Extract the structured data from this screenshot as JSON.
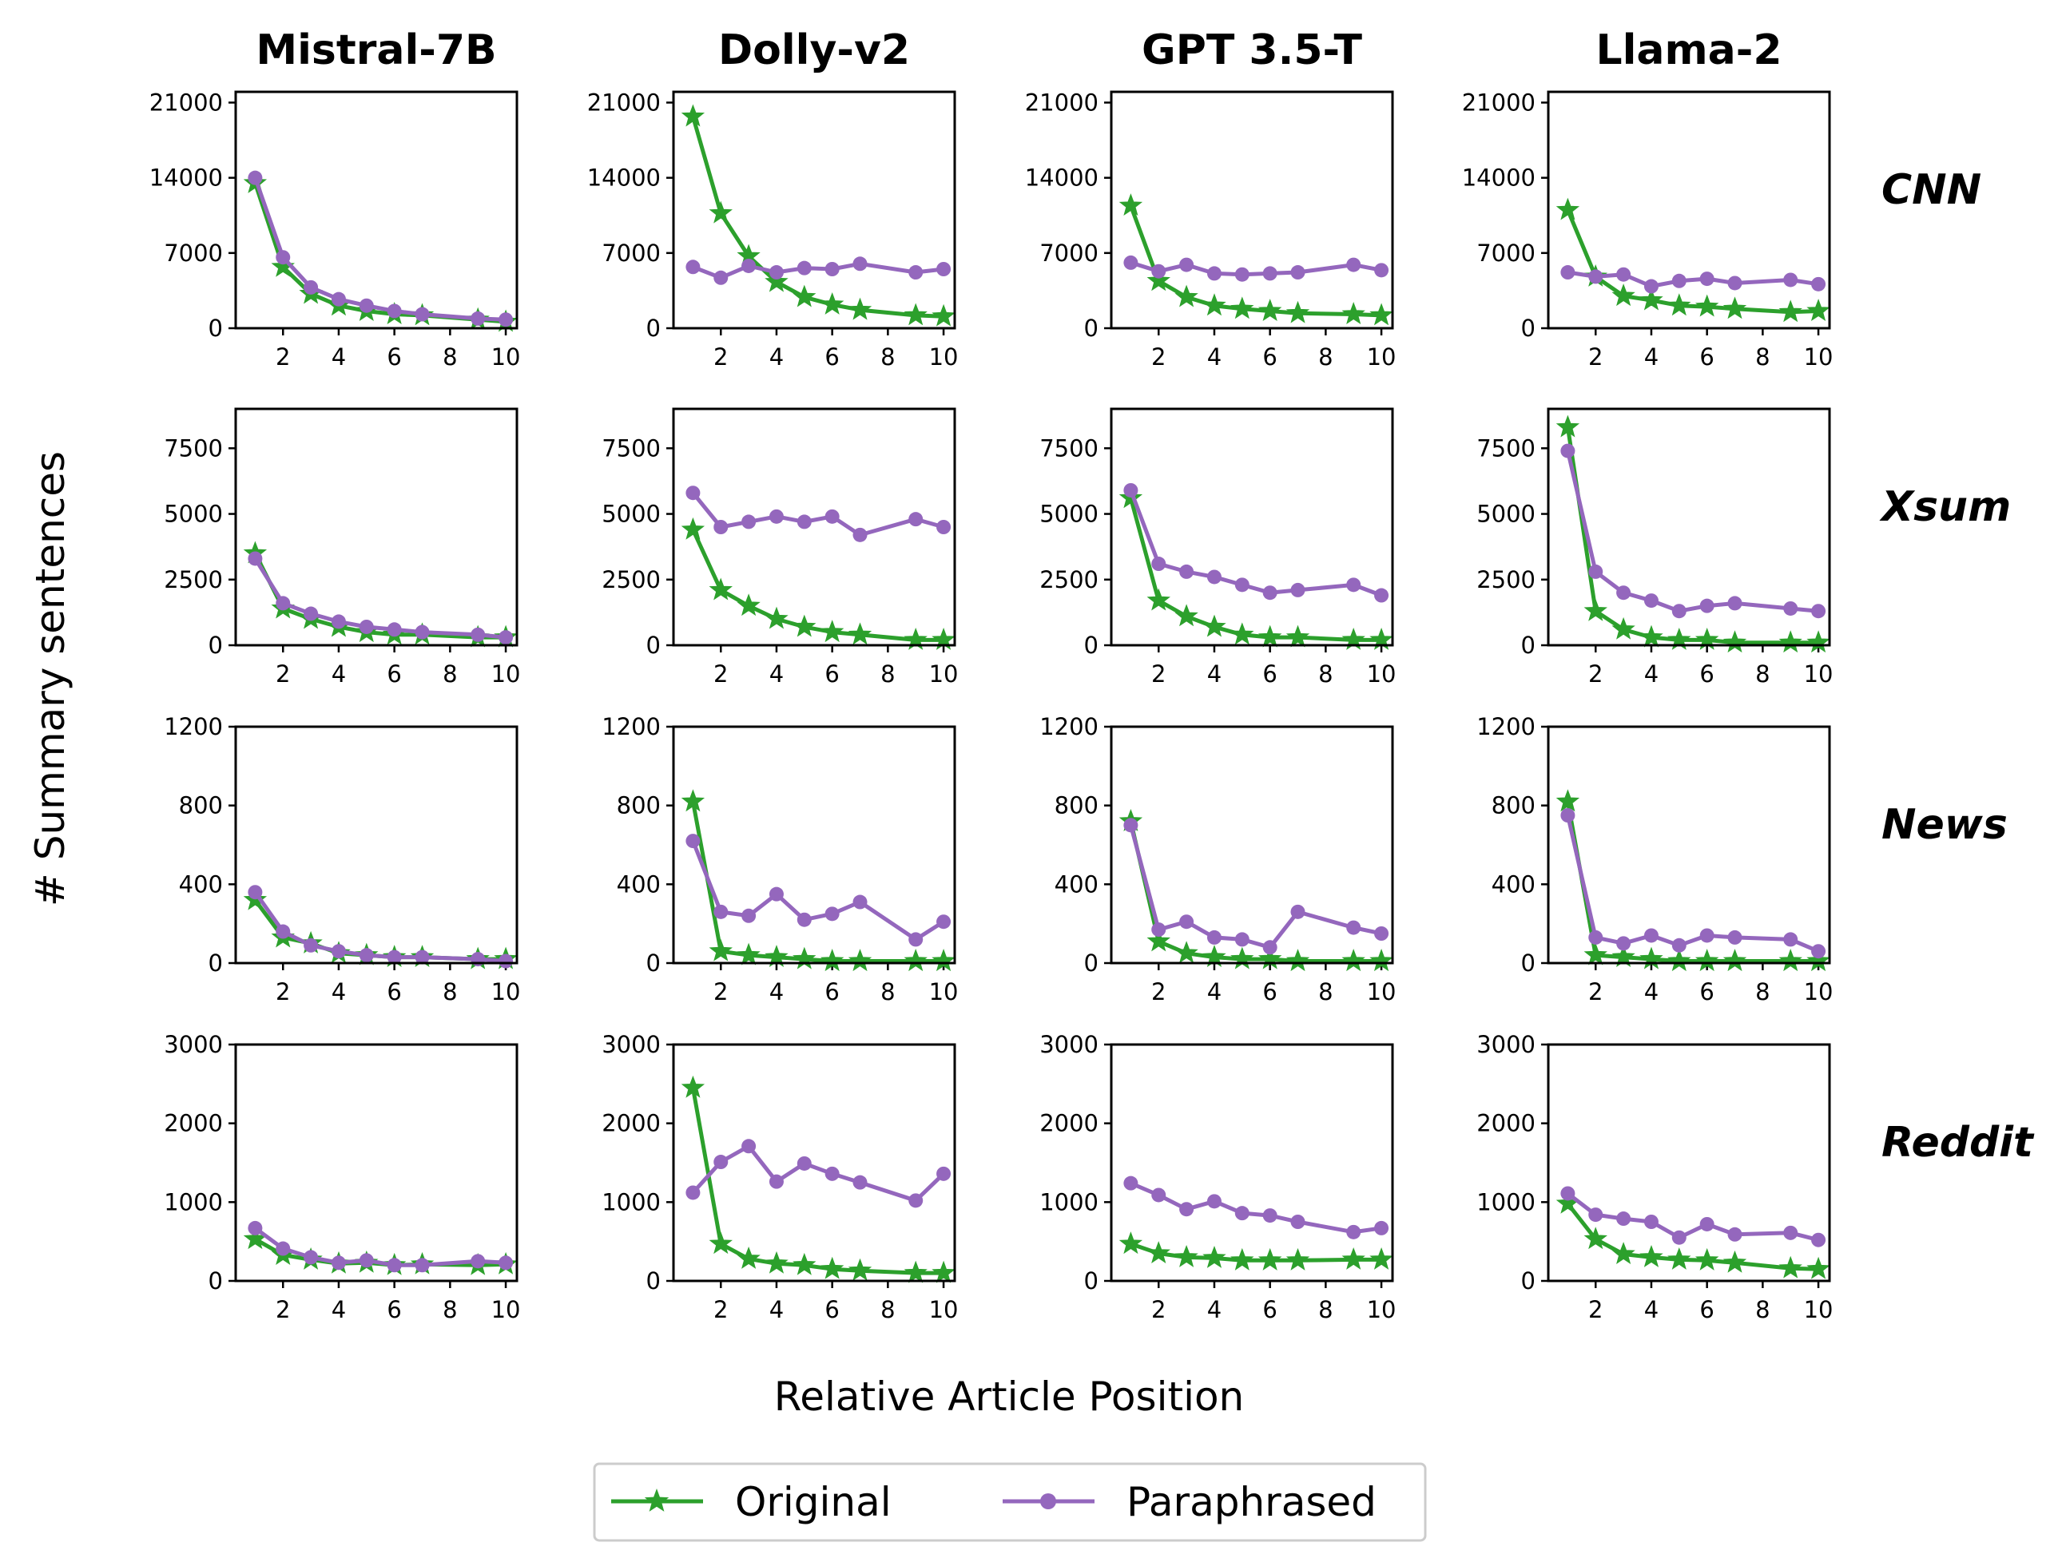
{
  "figure": {
    "ylabel": "# Summary sentences",
    "xlabel": "Relative Article Position"
  },
  "colors": {
    "Original": "#2ca02c",
    "Paraphrased": "#9467bd"
  },
  "legend": {
    "position": "bottom-center",
    "entries": [
      "Original",
      "Paraphrased"
    ]
  },
  "chart_data": {
    "type": "line",
    "x": [
      1,
      2,
      3,
      4,
      5,
      6,
      7,
      9,
      10
    ],
    "xticks": [
      2,
      4,
      6,
      8,
      10
    ],
    "xlim": [
      0.3,
      10.4
    ],
    "columns": [
      "Mistral-7B",
      "Dolly-v2",
      "GPT 3.5-T",
      "Llama-2"
    ],
    "rows": [
      {
        "name": "CNN",
        "ylim": [
          0,
          22000
        ],
        "yticks": [
          0,
          7000,
          14000,
          21000
        ],
        "ytick_labels": [
          "0",
          "7000",
          "14000",
          "21000"
        ]
      },
      {
        "name": "Xsum",
        "ylim": [
          0,
          9000
        ],
        "yticks": [
          0,
          2500,
          5000,
          7500
        ],
        "ytick_labels": [
          "0",
          "2500",
          "5000",
          "7500"
        ]
      },
      {
        "name": "News",
        "ylim": [
          0,
          1200
        ],
        "yticks": [
          0,
          400,
          800,
          1200
        ],
        "ytick_labels": [
          "0",
          "400",
          "800",
          "1200"
        ]
      },
      {
        "name": "Reddit",
        "ylim": [
          0,
          3000
        ],
        "yticks": [
          0,
          1000,
          2000,
          3000
        ],
        "ytick_labels": [
          "0",
          "1000",
          "2000",
          "3000"
        ]
      }
    ],
    "panels": [
      [
        {
          "Original": [
            13500,
            5700,
            3200,
            2100,
            1600,
            1300,
            1200,
            800,
            600
          ],
          "Paraphrased": [
            14000,
            6600,
            3800,
            2700,
            2100,
            1600,
            1300,
            900,
            800
          ]
        },
        {
          "Original": [
            19700,
            10700,
            6700,
            4300,
            2900,
            2200,
            1700,
            1200,
            1100
          ],
          "Paraphrased": [
            5700,
            4700,
            5800,
            5200,
            5600,
            5500,
            6000,
            5200,
            5500
          ]
        },
        {
          "Original": [
            11400,
            4400,
            2900,
            2100,
            1800,
            1600,
            1400,
            1300,
            1200
          ],
          "Paraphrased": [
            6100,
            5300,
            5900,
            5100,
            5000,
            5100,
            5200,
            5900,
            5400
          ]
        },
        {
          "Original": [
            11000,
            4800,
            3000,
            2600,
            2100,
            2000,
            1800,
            1500,
            1600
          ],
          "Paraphrased": [
            5200,
            4800,
            5000,
            3900,
            4400,
            4600,
            4200,
            4500,
            4100
          ]
        }
      ],
      [
        {
          "Original": [
            3500,
            1400,
            1000,
            700,
            500,
            400,
            400,
            300,
            300
          ],
          "Paraphrased": [
            3300,
            1600,
            1200,
            900,
            700,
            600,
            500,
            400,
            300
          ]
        },
        {
          "Original": [
            4400,
            2100,
            1500,
            1000,
            700,
            500,
            400,
            200,
            200
          ],
          "Paraphrased": [
            5800,
            4500,
            4700,
            4900,
            4700,
            4900,
            4200,
            4800,
            4500
          ]
        },
        {
          "Original": [
            5600,
            1700,
            1100,
            700,
            400,
            300,
            300,
            200,
            200
          ],
          "Paraphrased": [
            5900,
            3100,
            2800,
            2600,
            2300,
            2000,
            2100,
            2300,
            1900
          ]
        },
        {
          "Original": [
            8300,
            1300,
            600,
            300,
            200,
            200,
            100,
            100,
            100
          ],
          "Paraphrased": [
            7400,
            2800,
            2000,
            1700,
            1300,
            1500,
            1600,
            1400,
            1300
          ]
        }
      ],
      [
        {
          "Original": [
            320,
            130,
            100,
            50,
            40,
            30,
            30,
            20,
            20
          ],
          "Paraphrased": [
            360,
            160,
            90,
            60,
            40,
            30,
            30,
            20,
            10
          ]
        },
        {
          "Original": [
            820,
            60,
            40,
            30,
            20,
            10,
            10,
            10,
            10
          ],
          "Paraphrased": [
            620,
            260,
            240,
            350,
            220,
            250,
            310,
            120,
            210
          ]
        },
        {
          "Original": [
            720,
            110,
            50,
            30,
            20,
            20,
            10,
            10,
            10
          ],
          "Paraphrased": [
            700,
            170,
            210,
            130,
            120,
            80,
            260,
            180,
            150
          ]
        },
        {
          "Original": [
            820,
            40,
            30,
            20,
            10,
            10,
            10,
            10,
            10
          ],
          "Paraphrased": [
            750,
            130,
            100,
            140,
            90,
            140,
            130,
            120,
            60
          ]
        }
      ],
      [
        {
          "Original": [
            530,
            330,
            270,
            220,
            230,
            200,
            210,
            200,
            210
          ],
          "Paraphrased": [
            670,
            410,
            300,
            230,
            260,
            200,
            200,
            250,
            230
          ]
        },
        {
          "Original": [
            2450,
            470,
            280,
            220,
            200,
            150,
            130,
            100,
            100
          ],
          "Paraphrased": [
            1120,
            1510,
            1710,
            1260,
            1490,
            1360,
            1250,
            1020,
            1360
          ]
        },
        {
          "Original": [
            470,
            350,
            300,
            290,
            260,
            260,
            260,
            270,
            270
          ],
          "Paraphrased": [
            1240,
            1090,
            910,
            1010,
            860,
            830,
            750,
            620,
            670
          ]
        },
        {
          "Original": [
            980,
            530,
            340,
            300,
            270,
            260,
            230,
            160,
            150
          ],
          "Paraphrased": [
            1110,
            840,
            790,
            750,
            550,
            720,
            590,
            610,
            520
          ]
        }
      ]
    ]
  }
}
